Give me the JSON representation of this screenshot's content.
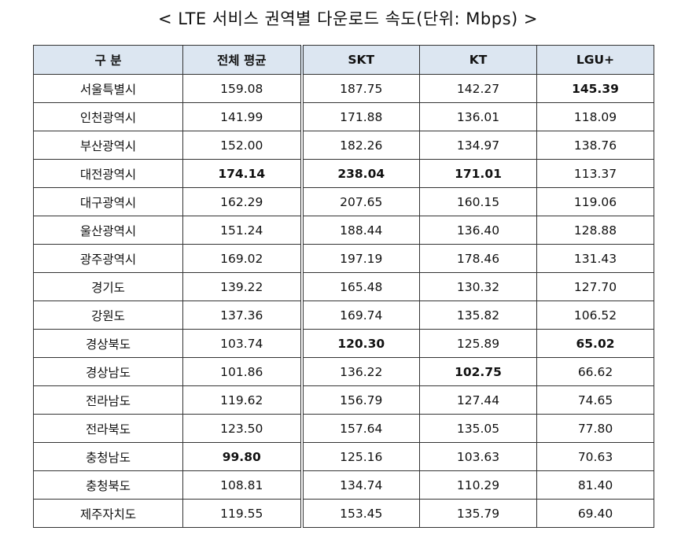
{
  "title": "< LTE 서비스 권역별 다운로드 속도(단위: Mbps) >",
  "table": {
    "header": [
      "구 분",
      "전체 평균",
      "SKT",
      "KT",
      "LGU+"
    ],
    "rows": [
      [
        "서울특별시",
        "159.08",
        "187.75",
        "142.27",
        "145.39"
      ],
      [
        "인천광역시",
        "141.99",
        "171.88",
        "136.01",
        "118.09"
      ],
      [
        "부산광역시",
        "152.00",
        "182.26",
        "134.97",
        "138.76"
      ],
      [
        "대전광역시",
        "174.14",
        "238.04",
        "171.01",
        "113.37"
      ],
      [
        "대구광역시",
        "162.29",
        "207.65",
        "160.15",
        "119.06"
      ],
      [
        "울산광역시",
        "151.24",
        "188.44",
        "136.40",
        "128.88"
      ],
      [
        "광주광역시",
        "169.02",
        "197.19",
        "178.46",
        "131.43"
      ],
      [
        "경기도",
        "139.22",
        "165.48",
        "130.32",
        "127.70"
      ],
      [
        "강원도",
        "137.36",
        "169.74",
        "135.82",
        "106.52"
      ],
      [
        "경상북도",
        "103.74",
        "120.30",
        "125.89",
        "65.02"
      ],
      [
        "경상남도",
        "101.86",
        "136.22",
        "102.75",
        "66.62"
      ],
      [
        "전라남도",
        "119.62",
        "156.79",
        "127.44",
        "74.65"
      ],
      [
        "전라북도",
        "123.50",
        "157.64",
        "135.05",
        "77.80"
      ],
      [
        "충청남도",
        "99.80",
        "125.16",
        "103.63",
        "70.63"
      ],
      [
        "충청북도",
        "108.81",
        "134.74",
        "110.29",
        "81.40"
      ],
      [
        "제주자치도",
        "119.55",
        "153.45",
        "135.79",
        "69.40"
      ]
    ]
  }
}
